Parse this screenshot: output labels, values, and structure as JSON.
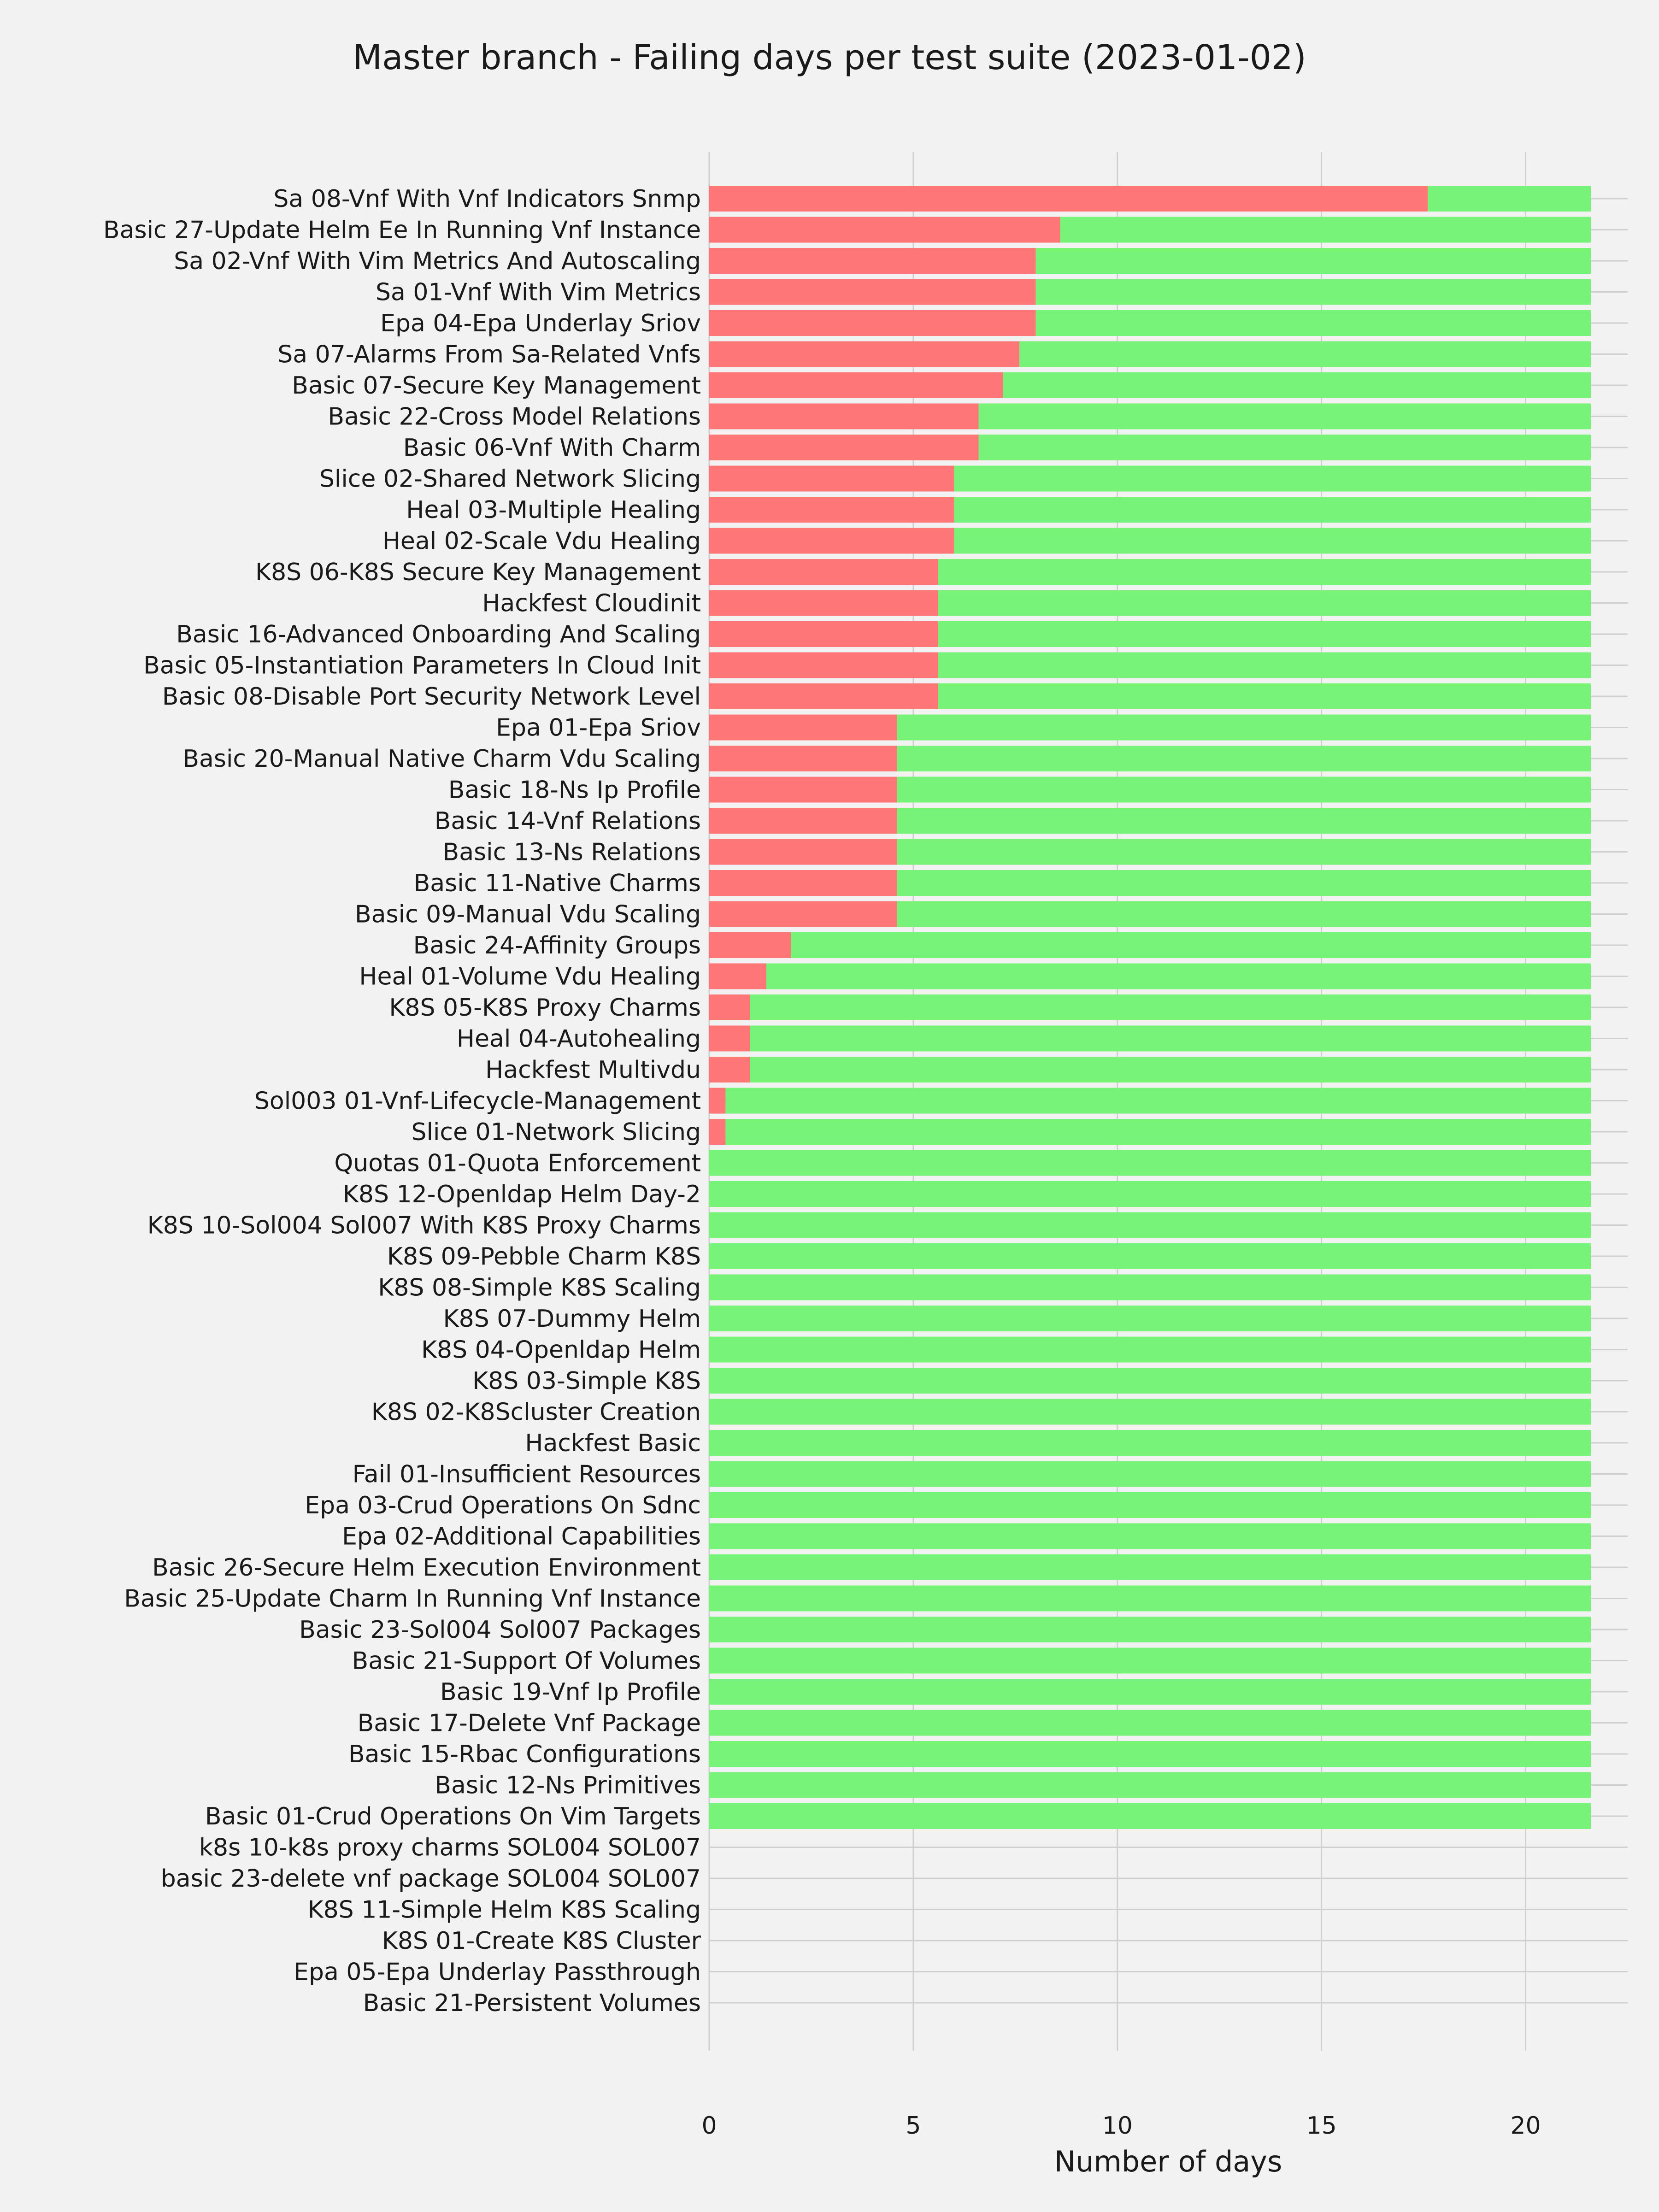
{
  "chart_data": {
    "type": "bar",
    "orientation": "horizontal",
    "stacked": true,
    "title": "Master branch - Failing days per test suite (2023-01-02)",
    "xlabel": "Number of days",
    "ylabel": "",
    "xlim": [
      0,
      22.5
    ],
    "xticks": [
      0,
      5,
      10,
      15,
      20
    ],
    "grid": true,
    "legend": "none",
    "colors": {
      "fail": "#ff7676",
      "pass": "#77f477",
      "grid": "#cfcfcf",
      "background": "#f2f2f2"
    },
    "categories": [
      "Sa 08-Vnf With Vnf Indicators Snmp",
      "Basic 27-Update Helm Ee In Running Vnf Instance",
      "Sa 02-Vnf With Vim Metrics And Autoscaling",
      "Sa 01-Vnf With Vim Metrics",
      "Epa 04-Epa Underlay Sriov",
      "Sa 07-Alarms From Sa-Related Vnfs",
      "Basic 07-Secure Key Management",
      "Basic 22-Cross Model Relations",
      "Basic 06-Vnf With Charm",
      "Slice 02-Shared Network Slicing",
      "Heal 03-Multiple Healing",
      "Heal 02-Scale Vdu Healing",
      "K8S 06-K8S Secure Key Management",
      "Hackfest Cloudinit",
      "Basic 16-Advanced Onboarding And Scaling",
      "Basic 05-Instantiation Parameters In Cloud Init",
      "Basic 08-Disable Port Security Network Level",
      "Epa 01-Epa Sriov",
      "Basic 20-Manual Native Charm Vdu Scaling",
      "Basic 18-Ns Ip Profile",
      "Basic 14-Vnf Relations",
      "Basic 13-Ns Relations",
      "Basic 11-Native Charms",
      "Basic 09-Manual Vdu Scaling",
      "Basic 24-Affinity Groups",
      "Heal 01-Volume Vdu Healing",
      "K8S 05-K8S Proxy Charms",
      "Heal 04-Autohealing",
      "Hackfest Multivdu",
      "Sol003 01-Vnf-Lifecycle-Management",
      "Slice 01-Network Slicing",
      "Quotas 01-Quota Enforcement",
      "K8S 12-Openldap Helm Day-2",
      "K8S 10-Sol004 Sol007 With K8S Proxy Charms",
      "K8S 09-Pebble Charm K8S",
      "K8S 08-Simple K8S Scaling",
      "K8S 07-Dummy Helm",
      "K8S 04-Openldap Helm",
      "K8S 03-Simple K8S",
      "K8S 02-K8Scluster Creation",
      "Hackfest Basic",
      "Fail 01-Insufficient Resources",
      "Epa 03-Crud Operations On Sdnc",
      "Epa 02-Additional Capabilities",
      "Basic 26-Secure Helm Execution Environment",
      "Basic 25-Update Charm In Running Vnf Instance",
      "Basic 23-Sol004 Sol007 Packages",
      "Basic 21-Support Of Volumes",
      "Basic 19-Vnf Ip Profile",
      "Basic 17-Delete Vnf Package",
      "Basic 15-Rbac Configurations",
      "Basic 12-Ns Primitives",
      "Basic 01-Crud Operations On Vim Targets",
      "k8s 10-k8s proxy charms SOL004 SOL007",
      "basic 23-delete vnf package SOL004 SOL007",
      "K8S 11-Simple Helm K8S Scaling",
      "K8S 01-Create K8S Cluster",
      "Epa 05-Epa Underlay Passthrough",
      "Basic 21-Persistent Volumes"
    ],
    "series": [
      {
        "name": "",
        "color": "#ff7676",
        "values": [
          17.6,
          8.6,
          8.0,
          8.0,
          8.0,
          7.6,
          7.2,
          6.6,
          6.6,
          6.0,
          6.0,
          6.0,
          5.6,
          5.6,
          5.6,
          5.6,
          5.6,
          4.6,
          4.6,
          4.6,
          4.6,
          4.6,
          4.6,
          4.6,
          2.0,
          1.4,
          1.0,
          1.0,
          1.0,
          0.4,
          0.4,
          0,
          0,
          0,
          0,
          0,
          0,
          0,
          0,
          0,
          0,
          0,
          0,
          0,
          0,
          0,
          0,
          0,
          0,
          0,
          0,
          0,
          0,
          0,
          0,
          0,
          0,
          0,
          0
        ]
      },
      {
        "name": "",
        "color": "#77f477",
        "values": [
          4.0,
          13.0,
          13.6,
          13.6,
          13.6,
          14.0,
          14.4,
          15.0,
          15.0,
          15.6,
          15.6,
          15.6,
          16.0,
          16.0,
          16.0,
          16.0,
          16.0,
          17.0,
          17.0,
          17.0,
          17.0,
          17.0,
          17.0,
          17.0,
          19.6,
          20.2,
          20.6,
          20.6,
          20.6,
          21.2,
          21.2,
          21.6,
          21.6,
          21.6,
          21.6,
          21.6,
          21.6,
          21.6,
          21.6,
          21.6,
          21.6,
          21.6,
          21.6,
          21.6,
          21.6,
          21.6,
          21.6,
          21.6,
          21.6,
          21.6,
          21.6,
          21.6,
          21.6,
          0,
          0,
          0,
          0,
          0,
          0
        ]
      }
    ]
  }
}
